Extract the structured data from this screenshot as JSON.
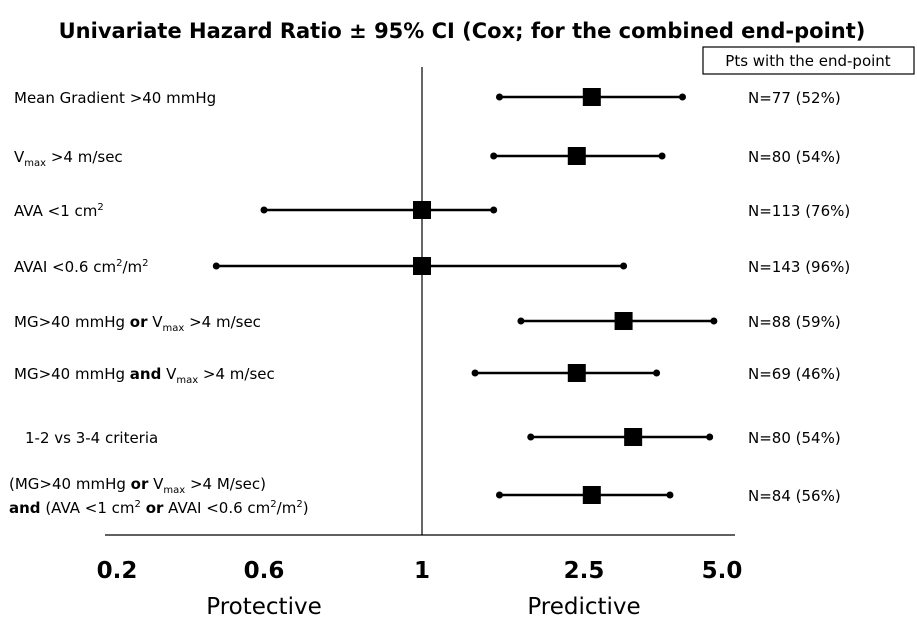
{
  "chart_data": {
    "type": "forest",
    "title": "Univariate Hazard Ratio ± 95% CI  (Cox; for the combined end-point)",
    "column_header": "Pts with the end-point",
    "x_scale": "log",
    "xlim": [
      0.2,
      5.0
    ],
    "reference_value": 1,
    "x_ticks": [
      "0.2",
      "0.6",
      "1",
      "2.5",
      "5.0"
    ],
    "x_tick_values": [
      0.2,
      0.6,
      1,
      2.5,
      5.0
    ],
    "side_labels": {
      "left": "Protective",
      "right": "Predictive"
    },
    "rows": [
      {
        "label_parts": [
          {
            "t": "Mean Gradient >40 mmHg",
            "s": "n"
          }
        ],
        "hr": 2.6,
        "ci_low": 1.55,
        "ci_high": 4.1,
        "n_text": "N=77 (52%)"
      },
      {
        "label_parts": [
          {
            "t": "V",
            "s": "n"
          },
          {
            "t": "max",
            "s": "sub"
          },
          {
            "t": " >4 m/sec",
            "s": "n"
          }
        ],
        "hr": 2.4,
        "ci_low": 1.5,
        "ci_high": 3.7,
        "n_text": "N=80 (54%)"
      },
      {
        "label_parts": [
          {
            "t": "AVA <1 cm",
            "s": "n"
          },
          {
            "t": "2",
            "s": "sup"
          }
        ],
        "hr": 1.0,
        "ci_low": 0.6,
        "ci_high": 1.5,
        "n_text": "N=113 (76%)"
      },
      {
        "label_parts": [
          {
            "t": "AVAI <0.6 cm",
            "s": "n"
          },
          {
            "t": "2",
            "s": "sup"
          },
          {
            "t": "/m",
            "s": "n"
          },
          {
            "t": "2",
            "s": "sup"
          }
        ],
        "hr": 1.0,
        "ci_low": 0.42,
        "ci_high": 3.05,
        "n_text": "N=143 (96%)"
      },
      {
        "label_parts": [
          {
            "t": "MG>40 mmHg ",
            "s": "n"
          },
          {
            "t": "or",
            "s": "b"
          },
          {
            "t": " V",
            "s": "n"
          },
          {
            "t": "max",
            "s": "sub"
          },
          {
            "t": " >4 m/sec",
            "s": "n"
          }
        ],
        "hr": 3.05,
        "ci_low": 1.75,
        "ci_high": 4.8,
        "n_text": "N=88 (59%)"
      },
      {
        "label_parts": [
          {
            "t": "MG>40 mmHg ",
            "s": "n"
          },
          {
            "t": "and",
            "s": "b"
          },
          {
            "t": " V",
            "s": "n"
          },
          {
            "t": "max",
            "s": "sub"
          },
          {
            "t": " >4 m/sec",
            "s": "n"
          }
        ],
        "hr": 2.4,
        "ci_low": 1.35,
        "ci_high": 3.6,
        "n_text": "N=69 (46%)"
      },
      {
        "label_parts": [
          {
            "t": "1-2 vs 3-4 criteria",
            "s": "n"
          }
        ],
        "hr": 3.2,
        "ci_low": 1.85,
        "ci_high": 4.7,
        "n_text": "N=80 (54%)"
      },
      {
        "label_parts": [
          {
            "t": "(MG>40 mmHg ",
            "s": "n"
          },
          {
            "t": "or",
            "s": "b"
          },
          {
            "t": " V",
            "s": "n"
          },
          {
            "t": "max",
            "s": "sub"
          },
          {
            "t": " >4 M/sec)",
            "s": "n"
          }
        ],
        "label_parts_line2": [
          {
            "t": "and",
            "s": "b"
          },
          {
            "t": " (AVA <1 cm",
            "s": "n"
          },
          {
            "t": "2",
            "s": "sup"
          },
          {
            "t": " ",
            "s": "n"
          },
          {
            "t": "or",
            "s": "b"
          },
          {
            "t": " AVAI <0.6 cm",
            "s": "n"
          },
          {
            "t": "2",
            "s": "sup"
          },
          {
            "t": "/m",
            "s": "n"
          },
          {
            "t": "2",
            "s": "sup"
          },
          {
            "t": ")",
            "s": "n"
          }
        ],
        "hr": 2.6,
        "ci_low": 1.55,
        "ci_high": 3.85,
        "n_text": "N=84 (56%)"
      }
    ]
  }
}
